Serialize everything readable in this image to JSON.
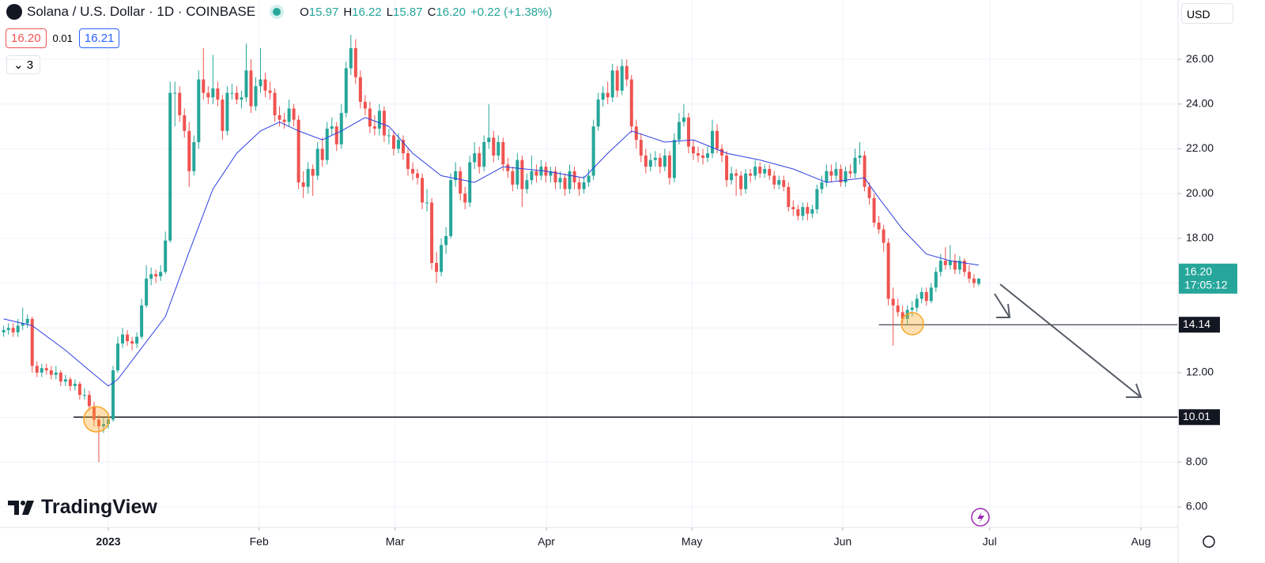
{
  "chart_data": {
    "type": "candlestick",
    "title": "Solana / U.S. Dollar · 1D · COINBASE",
    "legend_ohlc": [
      {
        "key": "O",
        "value": "15.97"
      },
      {
        "key": "H",
        "value": "16.22"
      },
      {
        "key": "L",
        "value": "15.87"
      },
      {
        "key": "C",
        "value": "16.20"
      }
    ],
    "change": "+0.22 (+1.38%)",
    "sell": "16.20",
    "spread": "0.01",
    "buy": "16.21",
    "indicators": "3",
    "currency": "USD",
    "brand": "TradingView",
    "up_color": "#26a69a",
    "down_color": "#ef5350",
    "ma_color": "#2f3fe0",
    "grid": true,
    "ylim": [
      5.08,
      28.65
    ],
    "yticks": [
      {
        "value": 6,
        "label": "6.00"
      },
      {
        "value": 8,
        "label": "8.00"
      },
      {
        "value": 10,
        "label": "10.00"
      },
      {
        "value": 12,
        "label": "12.00"
      },
      {
        "value": 14,
        "label": "14.00"
      },
      {
        "value": 16,
        "label": "16.00"
      },
      {
        "value": 18,
        "label": "18.00"
      },
      {
        "value": 20,
        "label": "20.00"
      },
      {
        "value": 22,
        "label": "22.00"
      },
      {
        "value": 24,
        "label": "24.00"
      },
      {
        "value": 26,
        "label": "26.00"
      }
    ],
    "xlim": [
      -0.77,
      246.9
    ],
    "xticks": [
      {
        "value": 22,
        "label": "2023"
      },
      {
        "value": 53.7,
        "label": "Feb"
      },
      {
        "value": 82.3,
        "label": "Mar"
      },
      {
        "value": 114.1,
        "label": "Apr"
      },
      {
        "value": 144.7,
        "label": "May"
      },
      {
        "value": 176.4,
        "label": "Jun"
      },
      {
        "value": 207.3,
        "label": "Jul"
      },
      {
        "value": 239.1,
        "label": "Aug"
      }
    ],
    "last_price": {
      "value": 16.2,
      "label": "16.20"
    },
    "countdown": "17:05:12",
    "levels": [
      14.14,
      10.01
    ],
    "candles": [
      [
        13.8,
        14.1,
        13.6,
        13.9
      ],
      [
        13.9,
        14.2,
        13.7,
        14.0
      ],
      [
        14.0,
        14.2,
        13.6,
        13.8
      ],
      [
        13.8,
        14.4,
        13.6,
        14.1
      ],
      [
        14.1,
        14.9,
        13.9,
        14.2
      ],
      [
        14.2,
        14.6,
        14.0,
        14.4
      ],
      [
        14.4,
        14.5,
        12.0,
        12.3
      ],
      [
        12.3,
        12.5,
        11.8,
        12.0
      ],
      [
        12.0,
        12.4,
        11.8,
        12.2
      ],
      [
        12.2,
        12.4,
        11.9,
        12.1
      ],
      [
        12.1,
        12.3,
        11.7,
        11.9
      ],
      [
        11.9,
        12.3,
        11.7,
        12.0
      ],
      [
        12.0,
        12.1,
        11.4,
        11.6
      ],
      [
        11.6,
        11.9,
        11.4,
        11.7
      ],
      [
        11.7,
        11.8,
        11.2,
        11.4
      ],
      [
        11.4,
        11.7,
        11.2,
        11.5
      ],
      [
        11.5,
        11.6,
        10.8,
        11.0
      ],
      [
        11.0,
        11.3,
        10.8,
        11.0
      ],
      [
        11.0,
        11.2,
        10.3,
        10.5
      ],
      [
        10.5,
        10.7,
        9.6,
        9.9
      ],
      [
        9.9,
        10.1,
        8.0,
        9.6
      ],
      [
        9.6,
        10.0,
        9.3,
        9.7
      ],
      [
        9.7,
        10.2,
        9.5,
        9.9
      ],
      [
        9.9,
        12.3,
        9.8,
        12.1
      ],
      [
        12.1,
        13.6,
        12.0,
        13.3
      ],
      [
        13.3,
        14.0,
        13.1,
        13.7
      ],
      [
        13.7,
        13.9,
        13.2,
        13.4
      ],
      [
        13.4,
        13.6,
        13.0,
        13.3
      ],
      [
        13.3,
        13.8,
        13.1,
        13.6
      ],
      [
        13.6,
        15.3,
        13.5,
        15.0
      ],
      [
        15.0,
        16.8,
        14.9,
        16.2
      ],
      [
        16.2,
        16.7,
        15.9,
        16.4
      ],
      [
        16.4,
        16.6,
        16.0,
        16.3
      ],
      [
        16.3,
        16.8,
        16.1,
        16.5
      ],
      [
        16.5,
        18.3,
        16.4,
        17.9
      ],
      [
        17.9,
        25.0,
        17.8,
        24.5
      ],
      [
        24.5,
        25.0,
        23.0,
        24.5
      ],
      [
        24.5,
        24.8,
        23.2,
        23.5
      ],
      [
        23.5,
        23.8,
        22.5,
        22.8
      ],
      [
        22.8,
        23.2,
        20.3,
        21.0
      ],
      [
        21.0,
        22.6,
        20.8,
        22.3
      ],
      [
        22.3,
        25.5,
        22.0,
        25.1
      ],
      [
        25.1,
        26.5,
        24.2,
        24.5
      ],
      [
        24.5,
        24.8,
        24.0,
        24.3
      ],
      [
        24.3,
        26.2,
        24.0,
        24.7
      ],
      [
        24.7,
        25.0,
        23.9,
        24.2
      ],
      [
        24.2,
        24.4,
        22.4,
        22.8
      ],
      [
        22.8,
        24.8,
        22.6,
        24.5
      ],
      [
        24.5,
        24.9,
        24.2,
        24.5
      ],
      [
        24.5,
        24.8,
        24.0,
        24.2
      ],
      [
        24.2,
        24.6,
        23.8,
        24.3
      ],
      [
        24.3,
        26.7,
        24.1,
        25.5
      ],
      [
        25.5,
        26.0,
        23.6,
        23.9
      ],
      [
        23.9,
        25.2,
        23.7,
        24.8
      ],
      [
        24.8,
        26.5,
        24.5,
        25.1
      ],
      [
        25.1,
        25.4,
        24.3,
        24.6
      ],
      [
        24.6,
        25.0,
        24.2,
        24.5
      ],
      [
        24.5,
        24.7,
        23.2,
        23.5
      ],
      [
        23.5,
        23.9,
        23.0,
        23.3
      ],
      [
        23.3,
        23.6,
        22.9,
        23.2
      ],
      [
        23.2,
        24.2,
        23.0,
        23.8
      ],
      [
        23.8,
        24.0,
        23.0,
        23.3
      ],
      [
        23.3,
        23.5,
        20.2,
        20.5
      ],
      [
        20.5,
        21.0,
        19.8,
        20.3
      ],
      [
        20.3,
        21.4,
        20.0,
        21.1
      ],
      [
        21.1,
        21.3,
        19.9,
        20.8
      ],
      [
        20.8,
        22.3,
        20.6,
        22.0
      ],
      [
        22.0,
        22.5,
        21.2,
        21.5
      ],
      [
        21.5,
        23.2,
        21.3,
        22.9
      ],
      [
        22.9,
        23.4,
        22.6,
        23.0
      ],
      [
        23.0,
        23.2,
        21.9,
        22.2
      ],
      [
        22.2,
        24.0,
        22.0,
        23.6
      ],
      [
        23.6,
        25.9,
        23.4,
        25.6
      ],
      [
        25.6,
        27.1,
        25.3,
        26.5
      ],
      [
        26.5,
        26.9,
        24.9,
        25.2
      ],
      [
        25.2,
        25.5,
        23.8,
        24.1
      ],
      [
        24.1,
        24.4,
        23.5,
        23.8
      ],
      [
        23.8,
        24.1,
        22.7,
        23.0
      ],
      [
        23.0,
        23.5,
        22.6,
        22.9
      ],
      [
        22.9,
        24.0,
        22.6,
        23.7
      ],
      [
        23.7,
        23.9,
        22.3,
        22.6
      ],
      [
        22.6,
        22.9,
        22.2,
        22.6
      ],
      [
        22.6,
        22.8,
        21.7,
        22.0
      ],
      [
        22.0,
        22.7,
        21.8,
        22.4
      ],
      [
        22.4,
        22.6,
        21.5,
        21.8
      ],
      [
        21.8,
        22.0,
        20.8,
        21.1
      ],
      [
        21.1,
        21.4,
        20.6,
        20.9
      ],
      [
        20.9,
        21.1,
        20.4,
        20.7
      ],
      [
        20.7,
        20.9,
        19.3,
        19.6
      ],
      [
        19.6,
        20.2,
        19.2,
        19.6
      ],
      [
        19.6,
        19.8,
        16.6,
        16.9
      ],
      [
        16.9,
        17.4,
        16.0,
        16.5
      ],
      [
        16.5,
        18.0,
        16.3,
        17.7
      ],
      [
        17.7,
        18.5,
        17.3,
        18.1
      ],
      [
        18.1,
        20.9,
        18.0,
        20.6
      ],
      [
        20.6,
        21.4,
        20.3,
        21.0
      ],
      [
        21.0,
        21.2,
        19.7,
        20.0
      ],
      [
        20.0,
        20.3,
        19.3,
        19.6
      ],
      [
        19.6,
        21.7,
        19.4,
        21.4
      ],
      [
        21.4,
        22.3,
        21.1,
        21.8
      ],
      [
        21.8,
        22.1,
        20.9,
        21.2
      ],
      [
        21.2,
        22.6,
        21.0,
        22.3
      ],
      [
        22.3,
        24.0,
        22.0,
        22.5
      ],
      [
        22.5,
        22.8,
        21.4,
        21.7
      ],
      [
        21.7,
        22.6,
        21.5,
        22.3
      ],
      [
        22.3,
        22.5,
        21.0,
        21.3
      ],
      [
        21.3,
        21.6,
        20.7,
        21.0
      ],
      [
        21.0,
        21.2,
        20.1,
        20.4
      ],
      [
        20.4,
        21.8,
        20.2,
        21.5
      ],
      [
        21.5,
        21.7,
        19.4,
        20.2
      ],
      [
        20.2,
        20.9,
        20.0,
        20.6
      ],
      [
        20.6,
        21.7,
        20.4,
        21.0
      ],
      [
        21.0,
        21.3,
        20.5,
        20.8
      ],
      [
        20.8,
        21.5,
        20.6,
        21.2
      ],
      [
        21.2,
        21.4,
        20.5,
        20.8
      ],
      [
        20.8,
        21.2,
        20.5,
        21.0
      ],
      [
        21.0,
        21.2,
        20.2,
        20.5
      ],
      [
        20.5,
        21.0,
        20.2,
        20.7
      ],
      [
        20.7,
        20.9,
        19.9,
        20.2
      ],
      [
        20.2,
        21.3,
        20.0,
        21.0
      ],
      [
        21.0,
        21.2,
        20.2,
        20.5
      ],
      [
        20.5,
        20.7,
        19.9,
        20.2
      ],
      [
        20.2,
        20.8,
        20.0,
        20.5
      ],
      [
        20.5,
        21.1,
        20.3,
        20.8
      ],
      [
        20.8,
        23.3,
        20.6,
        23.0
      ],
      [
        23.0,
        24.5,
        22.8,
        24.2
      ],
      [
        24.2,
        24.8,
        23.9,
        24.5
      ],
      [
        24.5,
        25.0,
        24.0,
        24.3
      ],
      [
        24.3,
        25.8,
        24.1,
        25.5
      ],
      [
        25.5,
        25.7,
        24.3,
        24.6
      ],
      [
        24.6,
        26.0,
        24.4,
        25.7
      ],
      [
        25.7,
        26.0,
        24.8,
        25.1
      ],
      [
        25.1,
        25.3,
        22.7,
        23.0
      ],
      [
        23.0,
        23.3,
        22.0,
        22.4
      ],
      [
        22.4,
        22.7,
        21.4,
        21.7
      ],
      [
        21.7,
        22.0,
        20.9,
        21.2
      ],
      [
        21.2,
        21.8,
        21.0,
        21.5
      ],
      [
        21.5,
        21.9,
        21.2,
        21.6
      ],
      [
        21.6,
        21.8,
        20.9,
        21.2
      ],
      [
        21.2,
        22.0,
        21.0,
        21.7
      ],
      [
        21.7,
        21.9,
        20.4,
        20.7
      ],
      [
        20.7,
        22.7,
        20.5,
        22.4
      ],
      [
        22.4,
        23.6,
        22.2,
        23.2
      ],
      [
        23.2,
        24.0,
        23.0,
        23.4
      ],
      [
        23.4,
        23.6,
        21.8,
        22.1
      ],
      [
        22.1,
        22.4,
        21.5,
        21.8
      ],
      [
        21.8,
        22.1,
        21.4,
        21.7
      ],
      [
        21.7,
        22.0,
        21.3,
        21.6
      ],
      [
        21.6,
        22.1,
        21.4,
        21.8
      ],
      [
        21.8,
        23.3,
        21.6,
        22.8
      ],
      [
        22.8,
        23.1,
        21.8,
        22.0
      ],
      [
        22.0,
        22.2,
        21.4,
        21.7
      ],
      [
        21.7,
        21.9,
        20.3,
        20.6
      ],
      [
        20.6,
        21.2,
        20.4,
        20.9
      ],
      [
        20.9,
        21.1,
        19.9,
        20.8
      ],
      [
        20.8,
        21.0,
        19.9,
        20.2
      ],
      [
        20.2,
        21.1,
        20.0,
        20.9
      ],
      [
        20.9,
        21.1,
        20.5,
        20.8
      ],
      [
        20.8,
        21.5,
        20.6,
        21.2
      ],
      [
        21.2,
        21.4,
        20.7,
        20.9
      ],
      [
        20.9,
        21.3,
        20.7,
        21.1
      ],
      [
        21.1,
        21.3,
        20.6,
        20.8
      ],
      [
        20.8,
        21.0,
        20.2,
        20.4
      ],
      [
        20.4,
        20.8,
        20.2,
        20.6
      ],
      [
        20.6,
        20.8,
        20.1,
        20.3
      ],
      [
        20.3,
        20.5,
        19.2,
        19.4
      ],
      [
        19.4,
        19.7,
        19.0,
        19.3
      ],
      [
        19.3,
        19.5,
        18.8,
        19.0
      ],
      [
        19.0,
        19.6,
        18.8,
        19.4
      ],
      [
        19.4,
        19.6,
        18.8,
        19.1
      ],
      [
        19.1,
        19.5,
        18.9,
        19.3
      ],
      [
        19.3,
        20.4,
        19.1,
        20.2
      ],
      [
        20.2,
        20.8,
        20.0,
        20.5
      ],
      [
        20.5,
        21.3,
        20.3,
        21.0
      ],
      [
        21.0,
        21.3,
        20.5,
        20.8
      ],
      [
        20.8,
        21.4,
        20.6,
        21.1
      ],
      [
        21.1,
        21.3,
        20.3,
        20.5
      ],
      [
        20.5,
        21.2,
        20.3,
        21.0
      ],
      [
        21.0,
        21.3,
        20.7,
        20.9
      ],
      [
        20.9,
        22.0,
        20.7,
        21.6
      ],
      [
        21.6,
        22.3,
        21.3,
        21.7
      ],
      [
        21.7,
        21.9,
        20.1,
        20.3
      ],
      [
        20.3,
        20.5,
        19.5,
        19.8
      ],
      [
        19.8,
        20.0,
        18.5,
        18.7
      ],
      [
        18.7,
        19.0,
        18.2,
        18.4
      ],
      [
        18.4,
        18.6,
        17.4,
        17.8
      ],
      [
        17.8,
        18.0,
        15.0,
        15.3
      ],
      [
        15.3,
        15.8,
        13.2,
        15.0
      ],
      [
        15.0,
        15.3,
        14.5,
        14.7
      ],
      [
        14.7,
        15.0,
        14.2,
        14.4
      ],
      [
        14.4,
        15.0,
        14.1,
        14.8
      ],
      [
        14.8,
        15.2,
        14.5,
        14.9
      ],
      [
        14.9,
        15.5,
        14.7,
        15.3
      ],
      [
        15.3,
        15.8,
        15.1,
        15.6
      ],
      [
        15.6,
        15.8,
        15.0,
        15.2
      ],
      [
        15.2,
        16.0,
        15.1,
        15.8
      ],
      [
        15.8,
        16.7,
        15.6,
        16.5
      ],
      [
        16.5,
        17.3,
        16.3,
        17.0
      ],
      [
        17.0,
        17.6,
        16.6,
        16.8
      ],
      [
        16.8,
        17.7,
        16.6,
        17.0
      ],
      [
        17.0,
        17.3,
        16.4,
        16.6
      ],
      [
        16.6,
        17.2,
        16.4,
        17.0
      ],
      [
        17.0,
        17.1,
        16.3,
        16.5
      ],
      [
        16.5,
        16.8,
        16.0,
        16.2
      ],
      [
        16.2,
        16.4,
        15.8,
        16.0
      ],
      [
        15.97,
        16.22,
        15.87,
        16.2
      ]
    ],
    "ma": {
      "x": [
        0,
        6,
        13,
        18,
        22,
        24,
        29,
        34,
        39,
        44,
        49,
        54,
        58,
        62,
        67,
        71,
        76,
        81,
        86,
        92,
        99,
        105,
        114,
        122,
        127,
        132,
        139,
        145,
        152,
        159,
        166,
        173,
        181,
        184,
        189,
        194,
        199,
        205
      ],
      "values": [
        14.4,
        14.1,
        13.0,
        12.1,
        11.4,
        11.7,
        13.1,
        14.5,
        17.4,
        20.2,
        21.8,
        22.8,
        23.2,
        22.8,
        22.4,
        22.8,
        23.4,
        23.0,
        21.8,
        20.8,
        20.5,
        21.2,
        21.0,
        20.7,
        21.8,
        22.8,
        22.3,
        22.4,
        21.8,
        21.5,
        21.1,
        20.5,
        20.7,
        19.8,
        18.4,
        17.3,
        17.0,
        16.8
      ]
    }
  }
}
